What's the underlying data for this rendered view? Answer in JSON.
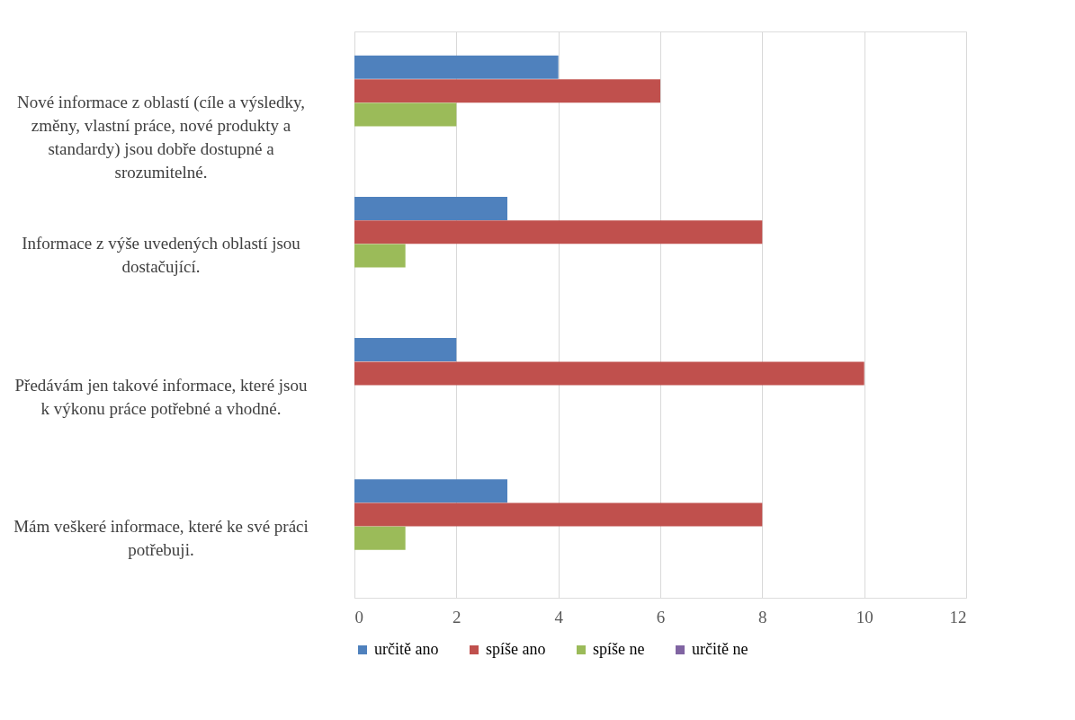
{
  "chart_data": {
    "type": "bar",
    "orientation": "horizontal",
    "categories": [
      "Nové informace z oblastí (cíle a výsledky, změny, vlastní práce, nové produkty a standardy) jsou dobře dostupné a srozumitelné.",
      "Informace z výše uvedených oblastí jsou dostačující.",
      "Předávám jen takové informace, které jsou k výkonu práce potřebné a vhodné.",
      "Mám veškeré informace, které ke své práci potřebuji."
    ],
    "series": [
      {
        "name": "určitě ano",
        "color": "#4f81bd",
        "values": [
          4,
          3,
          2,
          3
        ]
      },
      {
        "name": "spíše ano",
        "color": "#c0504d",
        "values": [
          6,
          8,
          10,
          8
        ]
      },
      {
        "name": "spíše ne",
        "color": "#9bbb59",
        "values": [
          2,
          1,
          0,
          1
        ]
      },
      {
        "name": "určitě ne",
        "color": "#8064a2",
        "values": [
          0,
          0,
          0,
          0
        ]
      }
    ],
    "xlim": [
      0,
      12
    ],
    "xticks": [
      0,
      2,
      4,
      6,
      8,
      10,
      12
    ],
    "grid": "x",
    "legend": "bottom"
  }
}
